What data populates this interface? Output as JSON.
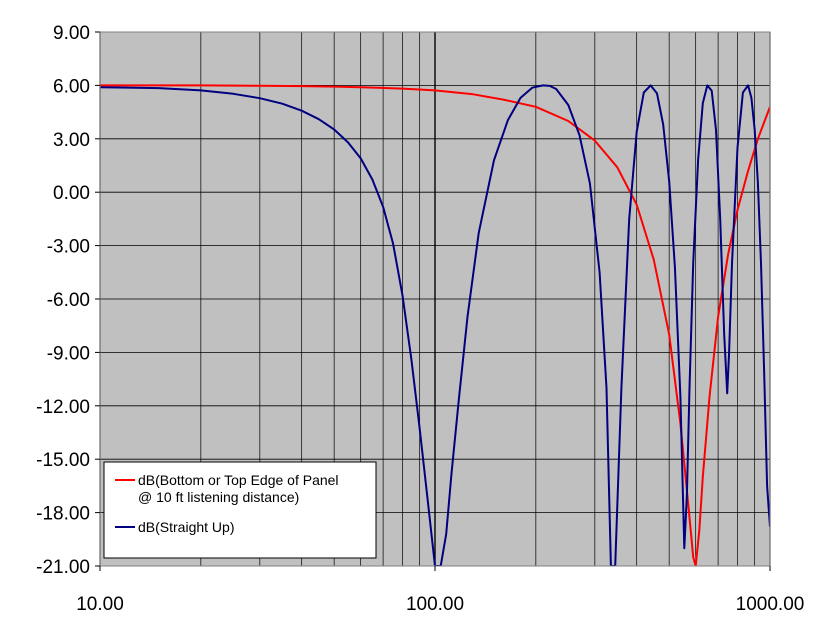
{
  "chart_data": {
    "type": "line",
    "title": "",
    "xlabel": "",
    "ylabel": "",
    "xscale": "log",
    "xlim": [
      10,
      1000
    ],
    "ylim": [
      -21,
      9
    ],
    "x_ticks": [
      "10.00",
      "100.00",
      "1000.00"
    ],
    "y_ticks": [
      "9.00",
      "6.00",
      "3.00",
      "0.00",
      "-3.00",
      "-6.00",
      "-9.00",
      "-12.00",
      "-15.00",
      "-18.00",
      "-21.00"
    ],
    "plot_background": "#c0c0c0",
    "grid": true,
    "legend_position": "bottom-left",
    "series": [
      {
        "name": "dB(Bottom or Top Edge of Panel @ 10 ft listening distance)",
        "legend_lines": [
          "dB(Bottom or Top Edge of Panel",
          "@ 10 ft listening distance)"
        ],
        "color": "#ff0000",
        "x": [
          10,
          20,
          30,
          40,
          50,
          60,
          80,
          100,
          130,
          160,
          200,
          250,
          300,
          350,
          400,
          450,
          500,
          540,
          570,
          590,
          600,
          615,
          630,
          660,
          700,
          750,
          800,
          860,
          920,
          1000
        ],
        "y": [
          6.0,
          6.0,
          5.98,
          5.96,
          5.93,
          5.9,
          5.82,
          5.72,
          5.5,
          5.2,
          4.8,
          4.0,
          2.9,
          1.4,
          -0.7,
          -3.8,
          -8.0,
          -13.0,
          -17.5,
          -20.5,
          -21.0,
          -19.0,
          -16.0,
          -11.5,
          -7.0,
          -3.5,
          -1.0,
          1.2,
          3.0,
          4.8
        ]
      },
      {
        "name": "dB(Straight Up)",
        "legend_lines": [
          "dB(Straight Up)"
        ],
        "color": "#000080",
        "x": [
          10,
          15,
          20,
          25,
          30,
          35,
          40,
          45,
          50,
          55,
          60,
          65,
          70,
          75,
          80,
          85,
          90,
          95,
          100,
          104,
          108,
          112,
          118,
          125,
          135,
          150,
          165,
          180,
          195,
          210,
          220,
          230,
          250,
          270,
          290,
          310,
          325,
          335,
          345,
          360,
          380,
          400,
          420,
          440,
          460,
          480,
          500,
          520,
          540,
          555,
          565,
          575,
          590,
          610,
          630,
          650,
          670,
          690,
          710,
          730,
          745,
          755,
          770,
          800,
          830,
          860,
          880,
          900,
          920,
          940,
          960,
          980,
          1000
        ],
        "y": [
          5.9,
          5.85,
          5.72,
          5.53,
          5.28,
          4.97,
          4.58,
          4.1,
          3.52,
          2.8,
          1.9,
          0.72,
          -0.82,
          -2.9,
          -5.8,
          -9.4,
          -13.3,
          -17.2,
          -21.0,
          -21.0,
          -19.2,
          -15.8,
          -11.5,
          -7.0,
          -2.3,
          1.8,
          4.05,
          5.3,
          5.87,
          6.0,
          5.97,
          5.8,
          4.9,
          3.2,
          0.5,
          -4.5,
          -11.0,
          -21.0,
          -21.0,
          -11.0,
          -1.5,
          3.4,
          5.6,
          6.0,
          5.55,
          3.8,
          0.6,
          -4.2,
          -11.5,
          -20.0,
          -17.0,
          -11.0,
          -4.0,
          1.8,
          5.0,
          6.0,
          5.7,
          3.5,
          -1.5,
          -8.0,
          -11.3,
          -9.0,
          -4.0,
          2.5,
          5.6,
          6.0,
          5.3,
          3.5,
          0.5,
          -4.0,
          -10.0,
          -16.5,
          -18.8
        ]
      }
    ]
  }
}
